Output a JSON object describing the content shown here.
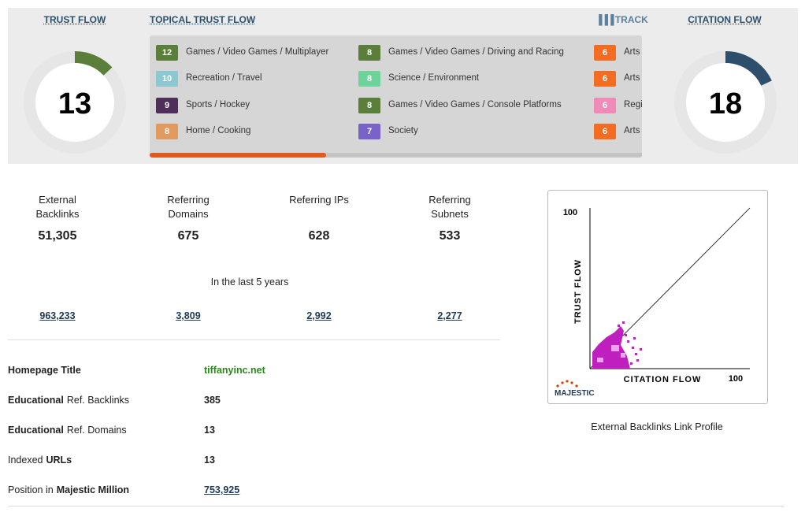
{
  "trust_flow": {
    "label": "TRUST FLOW",
    "value": 13,
    "color": "#5b7f3a",
    "max": 100
  },
  "topical_trust_flow": {
    "label": "TOPICAL TRUST FLOW",
    "track": "TRACK",
    "items": [
      {
        "score": 12,
        "topic": "Games / Video Games / Multiplayer",
        "color": "#5b7f3a"
      },
      {
        "score": 10,
        "topic": "Recreation / Travel",
        "color": "#8cc8d0"
      },
      {
        "score": 9,
        "topic": "Sports / Hockey",
        "color": "#4f2f5a"
      },
      {
        "score": 8,
        "topic": "Home / Cooking",
        "color": "#e09a5e"
      },
      {
        "score": 8,
        "topic": "Games / Video Games / Driving and Racing",
        "color": "#5b7f3a"
      },
      {
        "score": 8,
        "topic": "Science / Environment",
        "color": "#6dd39a"
      },
      {
        "score": 8,
        "topic": "Games / Video Games / Console Platforms",
        "color": "#5b7f3a"
      },
      {
        "score": 7,
        "topic": "Society",
        "color": "#7a63c8"
      },
      {
        "score": 6,
        "topic": "Arts",
        "color": "#f26d21"
      },
      {
        "score": 6,
        "topic": "Arts",
        "color": "#f26d21"
      },
      {
        "score": 6,
        "topic": "Regi",
        "color": "#f08ab8"
      },
      {
        "score": 6,
        "topic": "Arts",
        "color": "#f26d21"
      }
    ]
  },
  "citation_flow": {
    "label": "CITATION FLOW",
    "value": 18,
    "color": "#2d4f6c",
    "max": 100
  },
  "stats": [
    {
      "label": "External Backlinks",
      "value": "51,305",
      "last_5_years": "963,233"
    },
    {
      "label": "Referring Domains",
      "value": "675",
      "last_5_years": "3,809"
    },
    {
      "label": "Referring IPs",
      "value": "628",
      "last_5_years": "2,992"
    },
    {
      "label": "Referring Subnets",
      "value": "533",
      "last_5_years": "2,277"
    }
  ],
  "period_note": "In the last 5 years",
  "details": [
    {
      "label": [
        {
          "text": "Homepage Title",
          "bold": true
        }
      ],
      "value": "tiffanyinc.net"
    },
    {
      "label": [
        {
          "text": "Educational",
          "bold": true
        },
        {
          "text": "Ref. Backlinks",
          "bold": false
        }
      ],
      "value": "385"
    },
    {
      "label": [
        {
          "text": "Educational",
          "bold": true
        },
        {
          "text": "Ref. Domains",
          "bold": false
        }
      ],
      "value": "13"
    },
    {
      "label": [
        {
          "text": "Indexed",
          "bold": false
        },
        {
          "text": "URLs",
          "bold": true
        }
      ],
      "value": "13"
    },
    {
      "label": [
        {
          "text": "Position in",
          "bold": false
        },
        {
          "text": "Majestic Million",
          "bold": true
        }
      ],
      "value": "753,925"
    }
  ],
  "link_profile": {
    "y_max": "100",
    "y_label": "TRUST FLOW",
    "x_label": "CITATION FLOW",
    "x_max": "100",
    "brand": "MAJESTIC",
    "caption": "External Backlinks Link Profile"
  }
}
